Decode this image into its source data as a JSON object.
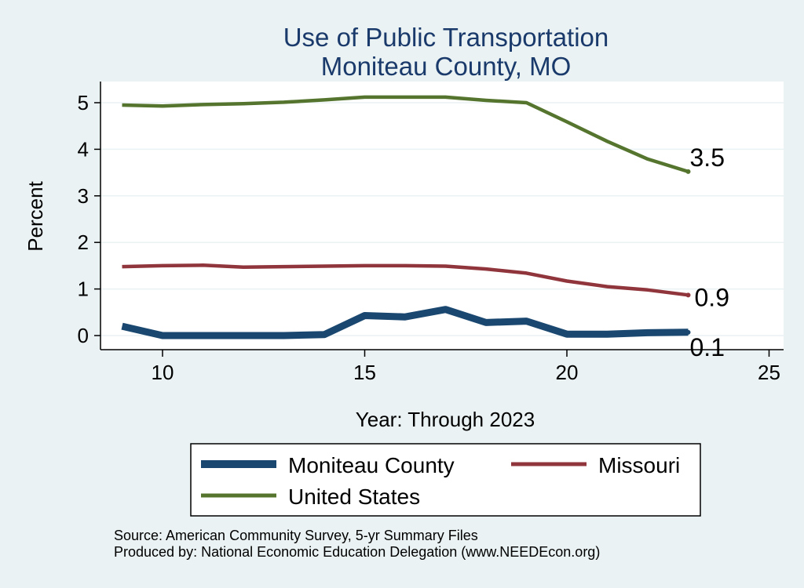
{
  "chart_data": {
    "type": "line",
    "title": "Use of Public Transportation",
    "subtitle": "Moniteau County, MO",
    "xlabel": "Year: Through 2023",
    "ylabel": "Percent",
    "xlim": [
      9,
      25
    ],
    "ylim": [
      0,
      5
    ],
    "xticks": [
      10,
      15,
      20,
      25
    ],
    "yticks": [
      0,
      1,
      2,
      3,
      4,
      5
    ],
    "grid": "horizontal",
    "legend_position": "bottom",
    "x": [
      9,
      10,
      11,
      12,
      13,
      14,
      15,
      16,
      17,
      18,
      19,
      20,
      21,
      22,
      23
    ],
    "series": [
      {
        "name": "Moniteau County",
        "color": "#1a476f",
        "values": [
          0.2,
          0.0,
          0.0,
          0.0,
          0.0,
          0.02,
          0.43,
          0.4,
          0.56,
          0.28,
          0.31,
          0.03,
          0.03,
          0.06,
          0.07
        ],
        "end_label": "0.1"
      },
      {
        "name": "Missouri",
        "color": "#90353b",
        "values": [
          1.48,
          1.5,
          1.51,
          1.47,
          1.48,
          1.49,
          1.5,
          1.5,
          1.49,
          1.43,
          1.34,
          1.17,
          1.05,
          0.98,
          0.87
        ],
        "end_label": "0.9"
      },
      {
        "name": "United States",
        "color": "#55752f",
        "values": [
          4.95,
          4.93,
          4.96,
          4.98,
          5.01,
          5.06,
          5.12,
          5.12,
          5.12,
          5.05,
          5.0,
          4.59,
          4.17,
          3.79,
          3.52
        ],
        "end_label": "3.5"
      }
    ],
    "notes": [
      "Source: American Community Survey, 5-yr Summary Files",
      "Produced by: National Economic Education Delegation (www.NEEDEcon.org)"
    ]
  }
}
